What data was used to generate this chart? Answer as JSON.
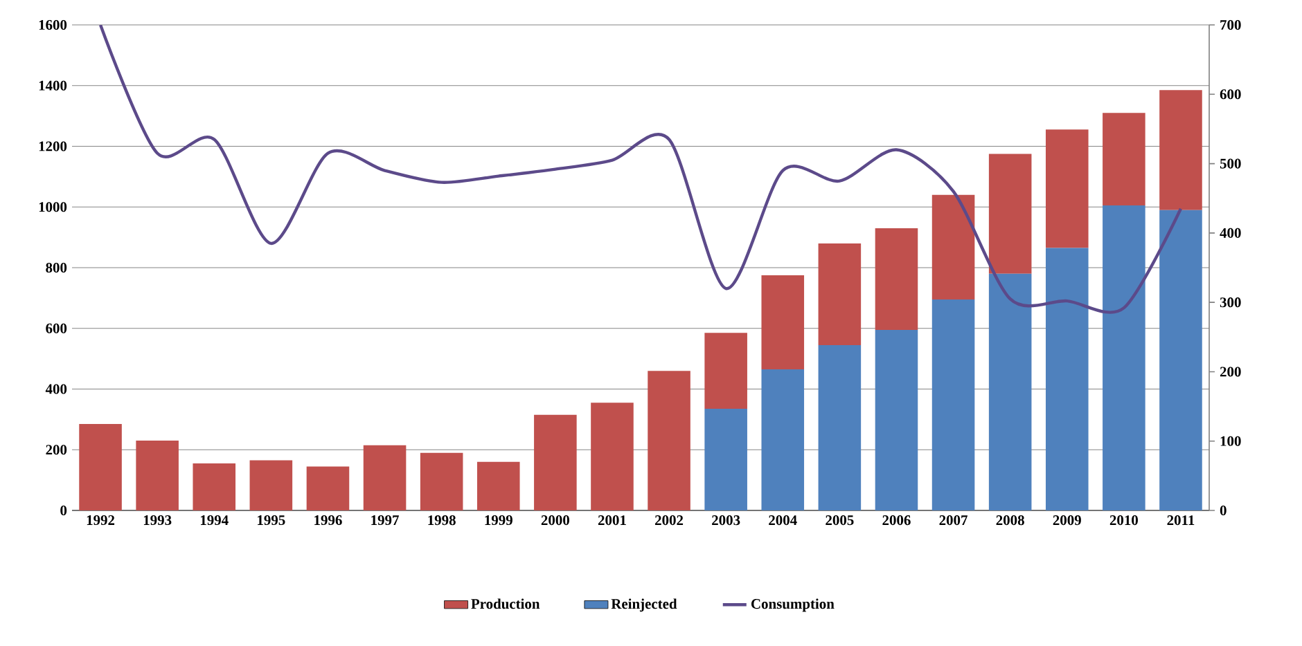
{
  "chart_data": {
    "type": "bar",
    "stacked": true,
    "categories": [
      "1992",
      "1993",
      "1994",
      "1995",
      "1996",
      "1997",
      "1998",
      "1999",
      "2000",
      "2001",
      "2002",
      "2003",
      "2004",
      "2005",
      "2006",
      "2007",
      "2008",
      "2009",
      "2010",
      "2011"
    ],
    "series": [
      {
        "name": "Reinjected",
        "color": "#4f81bd",
        "values": [
          null,
          null,
          null,
          null,
          null,
          null,
          null,
          null,
          null,
          null,
          null,
          335,
          465,
          545,
          595,
          695,
          780,
          865,
          1005,
          990
        ]
      },
      {
        "name": "Production",
        "color": "#c0504d",
        "values": [
          285,
          230,
          155,
          165,
          145,
          215,
          190,
          160,
          315,
          355,
          460,
          250,
          310,
          335,
          335,
          345,
          395,
          390,
          305,
          395
        ]
      },
      {
        "name": "Consumption",
        "type": "line",
        "axis": "y2",
        "color": "#5c4a8a",
        "values": [
          700,
          515,
          535,
          385,
          515,
          490,
          473,
          482,
          492,
          505,
          535,
          320,
          490,
          475,
          520,
          460,
          305,
          302,
          292,
          435
        ]
      }
    ],
    "ylim": [
      0,
      1600
    ],
    "yticks": [
      0,
      200,
      400,
      600,
      800,
      1000,
      1200,
      1400,
      1600
    ],
    "y2lim": [
      0,
      700
    ],
    "y2ticks": [
      0,
      100,
      200,
      300,
      400,
      500,
      600,
      700
    ],
    "grid": "y",
    "legend": "bottom"
  }
}
